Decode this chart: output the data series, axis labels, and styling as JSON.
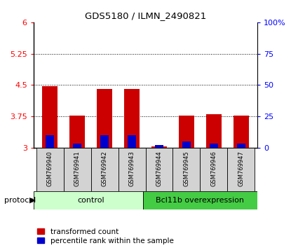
{
  "title": "GDS5180 / ILMN_2490821",
  "samples": [
    "GSM769940",
    "GSM769941",
    "GSM769942",
    "GSM769943",
    "GSM769944",
    "GSM769945",
    "GSM769946",
    "GSM769947"
  ],
  "red_values": [
    4.47,
    3.76,
    4.4,
    4.4,
    3.02,
    3.76,
    3.8,
    3.77
  ],
  "blue_pct": [
    10,
    3,
    10,
    10,
    2,
    5,
    3,
    3
  ],
  "baseline": 3.0,
  "ylim_left": [
    3.0,
    6.0
  ],
  "ylim_right": [
    0,
    100
  ],
  "yticks_left": [
    3.0,
    3.75,
    4.5,
    5.25,
    6.0
  ],
  "ytick_labels_left": [
    "3",
    "3.75",
    "4.5",
    "5.25",
    "6"
  ],
  "yticks_right": [
    0,
    25,
    50,
    75,
    100
  ],
  "ytick_labels_right": [
    "0",
    "25",
    "50",
    "75",
    "100%"
  ],
  "grid_lines": [
    3.75,
    4.5,
    5.25
  ],
  "control_samples": 4,
  "control_label": "control",
  "treatment_label": "Bcl11b overexpression",
  "protocol_label": "protocol",
  "legend_red": "transformed count",
  "legend_blue": "percentile rank within the sample",
  "bar_color_red": "#cc0000",
  "bar_color_blue": "#0000cc",
  "control_bg_light": "#ccffcc",
  "treatment_bg_dark": "#44cc44",
  "sample_bg": "#d3d3d3",
  "bar_width": 0.55
}
